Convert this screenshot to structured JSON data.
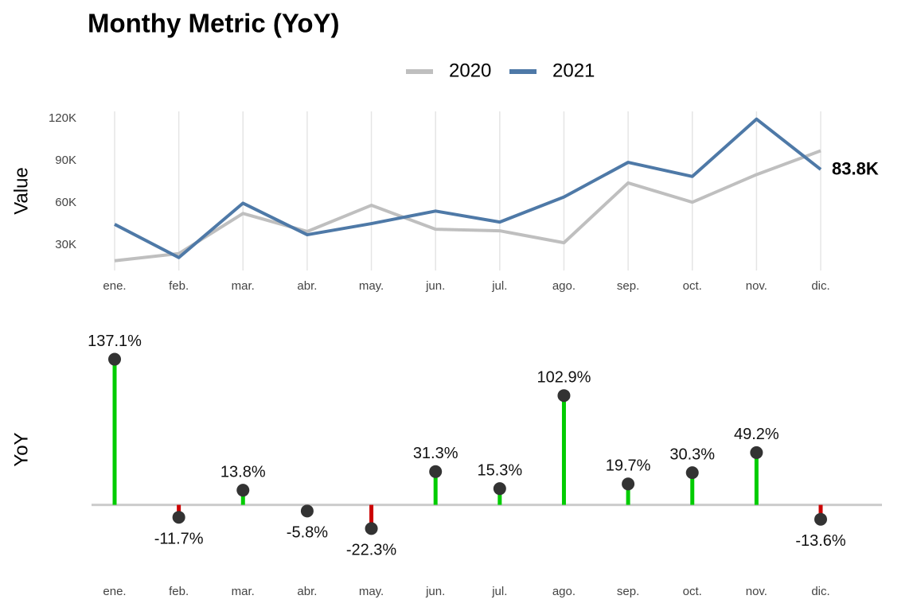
{
  "chart_data": [
    {
      "type": "line",
      "title": "Monthy Metric (YoY)",
      "y_label": "Value",
      "categories": [
        "ene.",
        "feb.",
        "mar.",
        "abr.",
        "may.",
        "jun.",
        "jul.",
        "ago.",
        "sep.",
        "oct.",
        "nov.",
        "dic."
      ],
      "series": [
        {
          "name": "2020",
          "color": "#bfbfbf",
          "values": [
            18900,
            24000,
            52500,
            39700,
            58300,
            41300,
            40200,
            31700,
            74200,
            60500,
            80100,
            97000
          ]
        },
        {
          "name": "2021",
          "color": "#4e79a7",
          "values": [
            44800,
            21200,
            59800,
            37400,
            45300,
            54200,
            46400,
            64200,
            88800,
            78800,
            119500,
            83800
          ],
          "value_labels": [
            null,
            null,
            null,
            null,
            null,
            null,
            null,
            null,
            null,
            null,
            null,
            "83.8K"
          ]
        }
      ],
      "ylim": [
        12000,
        125000
      ],
      "yticks": [
        {
          "value": 30000,
          "label": "30K"
        },
        {
          "value": 60000,
          "label": "60K"
        },
        {
          "value": 90000,
          "label": "90K"
        },
        {
          "value": 120000,
          "label": "120K"
        }
      ],
      "grid": "x",
      "legend": "top"
    },
    {
      "type": "lollipop",
      "y_label": "YoY",
      "categories": [
        "ene.",
        "feb.",
        "mar.",
        "abr.",
        "may.",
        "jun.",
        "jul.",
        "ago.",
        "sep.",
        "oct.",
        "nov.",
        "dic."
      ],
      "values": [
        137.1,
        -11.7,
        13.8,
        -5.8,
        -22.3,
        31.3,
        15.3,
        102.9,
        19.7,
        30.3,
        49.2,
        -13.6
      ],
      "value_labels": [
        "137.1%",
        "-11.7%",
        "13.8%",
        "-5.8%",
        "-22.3%",
        "31.3%",
        "15.3%",
        "102.9%",
        "19.7%",
        "30.3%",
        "49.2%",
        "-13.6%"
      ],
      "ylim": [
        -40,
        145
      ],
      "positive_color": "#00cc00",
      "negative_color": "#cc0000",
      "point_color": "#333333"
    }
  ]
}
